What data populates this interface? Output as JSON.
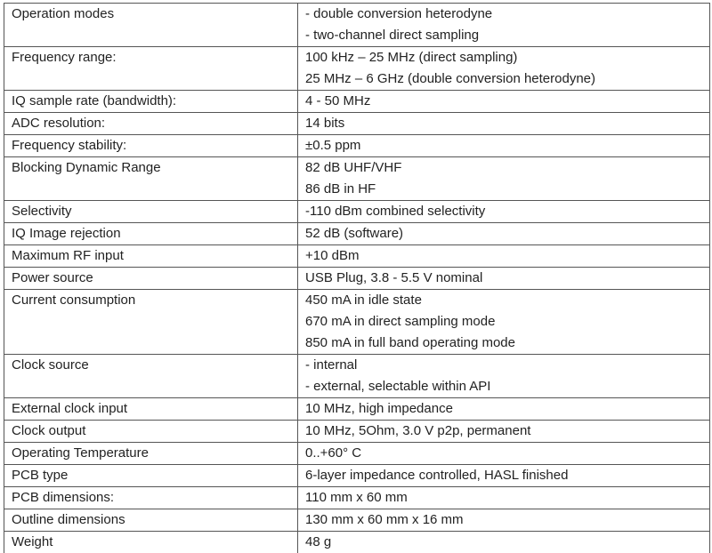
{
  "specs": [
    {
      "label": "Operation modes",
      "values": [
        "- double conversion heterodyne",
        "- two-channel direct sampling"
      ]
    },
    {
      "label": "Frequency range:",
      "values": [
        "100 kHz – 25 MHz (direct sampling)",
        "25 MHz – 6 GHz (double conversion heterodyne)"
      ]
    },
    {
      "label": "IQ sample rate (bandwidth):",
      "values": [
        "4 - 50 MHz"
      ]
    },
    {
      "label": "ADC resolution:",
      "values": [
        "14 bits"
      ]
    },
    {
      "label": "Frequency stability:",
      "values": [
        "±0.5 ppm"
      ]
    },
    {
      "label": "Blocking Dynamic Range",
      "values": [
        "82 dB UHF/VHF",
        "86 dB in HF"
      ]
    },
    {
      "label": "Selectivity",
      "values": [
        "-110 dBm combined selectivity"
      ]
    },
    {
      "label": "IQ Image rejection",
      "values": [
        "52 dB (software)"
      ]
    },
    {
      "label": "Maximum RF input",
      "values": [
        "+10 dBm"
      ]
    },
    {
      "label": "Power source",
      "values": [
        "USB Plug, 3.8 - 5.5 V nominal"
      ]
    },
    {
      "label": "Current consumption",
      "values": [
        "450 mA in idle state",
        "670 mA in direct sampling mode",
        "850 mA in full band operating mode"
      ]
    },
    {
      "label": "Clock source",
      "values": [
        "- internal",
        "- external, selectable within API"
      ]
    },
    {
      "label": "External clock input",
      "values": [
        "10 MHz, high impedance"
      ]
    },
    {
      "label": "Clock output",
      "values": [
        "10 MHz, 5Ohm, 3.0 V p2p, permanent"
      ]
    },
    {
      "label": "Operating Temperature",
      "values": [
        "0..+60° C"
      ]
    },
    {
      "label": "PCB type",
      "values": [
        "6-layer impedance controlled, HASL finished"
      ]
    },
    {
      "label": "PCB dimensions:",
      "values": [
        "110 mm x 60 mm"
      ]
    },
    {
      "label": "Outline dimensions",
      "values": [
        "130 mm x 60 mm x 16 mm"
      ]
    },
    {
      "label": "Weight",
      "values": [
        "48 g"
      ]
    }
  ]
}
